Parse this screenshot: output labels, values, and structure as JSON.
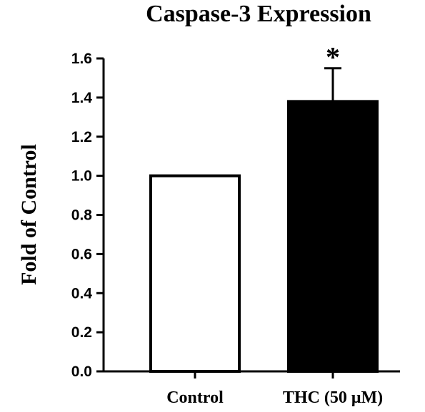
{
  "chart_data": {
    "type": "bar",
    "title": "Caspase-3 Expression",
    "xlabel": "",
    "ylabel": "Fold of Control",
    "ylim": [
      0,
      1.6
    ],
    "yticks": [
      "0.0",
      "0.2",
      "0.4",
      "0.6",
      "0.8",
      "1.0",
      "1.2",
      "1.4",
      "1.6"
    ],
    "categories": [
      "Control",
      "THC (50 μM)"
    ],
    "values": [
      1.0,
      1.38
    ],
    "error": [
      0,
      0.17
    ],
    "bar_fill": [
      "#ffffff",
      "#000000"
    ],
    "annotations": [
      "",
      "*"
    ],
    "grid": false,
    "legend": "none"
  }
}
